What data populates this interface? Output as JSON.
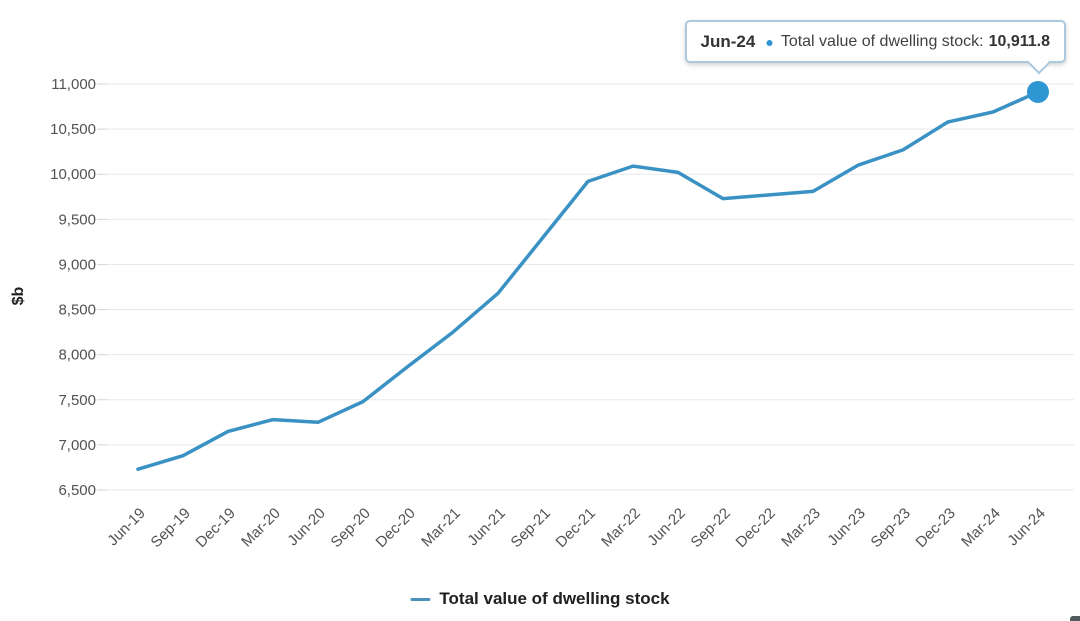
{
  "chart_data": {
    "type": "line",
    "title": "",
    "xlabel": "",
    "ylabel": "$b",
    "series": [
      {
        "name": "Total value of dwelling stock",
        "values": [
          6730,
          6880,
          7150,
          7280,
          7250,
          7480,
          7870,
          8250,
          8680,
          9300,
          9920,
          10090,
          10020,
          9730,
          9770,
          9810,
          10100,
          10270,
          10580,
          10690,
          10911.8
        ]
      }
    ],
    "categories": [
      "Jun-19",
      "Sep-19",
      "Dec-19",
      "Mar-20",
      "Jun-20",
      "Sep-20",
      "Dec-20",
      "Mar-21",
      "Jun-21",
      "Sep-21",
      "Dec-21",
      "Mar-22",
      "Jun-22",
      "Sep-22",
      "Dec-22",
      "Mar-23",
      "Jun-23",
      "Sep-23",
      "Dec-23",
      "Mar-24",
      "Jun-24"
    ],
    "ylim": [
      6500,
      11000
    ],
    "ytick_step": 500,
    "grid": true,
    "legend_position": "bottom",
    "highlighted_point": {
      "category": "Jun-24",
      "value": 10911.8
    }
  },
  "tooltip": {
    "date": "Jun-24",
    "marker_icon": "●",
    "series_label": "Total value of dwelling stock:",
    "value": "10,911.8"
  },
  "legend": {
    "label": "Total value of dwelling stock"
  },
  "colors": {
    "line": "#3a92c4",
    "marker": "#2e96d3",
    "grid": "#e9e9e9",
    "tick": "#d6d6d6",
    "tick_text": "#525252",
    "tooltip_border": "#abc9de"
  }
}
